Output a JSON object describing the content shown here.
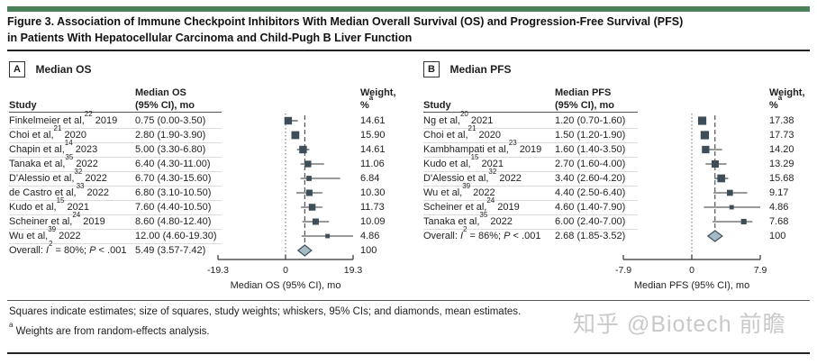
{
  "figure": {
    "title_line1": "Figure 3. Association of Immune Checkpoint Inhibitors With Median Overall Survival (OS) and Progression-Free Survival (PFS)",
    "title_line2": "in Patients With Hepatocellular Carcinoma and Child-Pugh B Liver Function",
    "footnote_main": "Squares indicate estimates; size of squares, study weights; whiskers, 95% CIs; and diamonds, mean estimates.",
    "footnote_a_sup": "a",
    "footnote_a_text": " Weights are from random-effects analysis.",
    "watermark": "知乎 @Biotech 前瞻"
  },
  "colors": {
    "accent_green": "#4a8159",
    "square": "#3d4e59",
    "diamond_fill": "#a5bcc8",
    "diamond_stroke": "#3d4e59",
    "axis": "#333333",
    "zero_line": "#666666",
    "separator": "#dcdcdc",
    "text": "#1f1f1f"
  },
  "chart_data": [
    {
      "type": "forest",
      "panel_letter": "A",
      "panel_title": "Median OS",
      "col_headers": {
        "study": "Study",
        "estimate_line1": "Median OS",
        "estimate_line2": "(95% CI), mo",
        "weight_line1": "Weight,",
        "weight_line2": "%",
        "weight_sup": "a"
      },
      "axis": {
        "min": -19.3,
        "max": 19.3,
        "ticks": [
          -19.3,
          0,
          19.3
        ],
        "tick_labels": [
          "-19.3",
          "0",
          "19.3"
        ],
        "label": "Median OS (95% CI), mo"
      },
      "rows": [
        {
          "label_parts": [
            {
              "t": "Finkelmeier et al,"
            },
            {
              "t": "22",
              "sup": true
            },
            {
              "t": " 2019"
            }
          ],
          "ci_text": "0.75 (0.00-3.50)",
          "est": 0.75,
          "lo": 0.0,
          "hi": 3.5,
          "weight": 14.61,
          "weight_text": "14.61"
        },
        {
          "label_parts": [
            {
              "t": "Choi et al,"
            },
            {
              "t": "21",
              "sup": true
            },
            {
              "t": " 2020"
            }
          ],
          "ci_text": "2.80 (1.90-3.90)",
          "est": 2.8,
          "lo": 1.9,
          "hi": 3.9,
          "weight": 15.9,
          "weight_text": "15.90"
        },
        {
          "label_parts": [
            {
              "t": "Chapin et al,"
            },
            {
              "t": "14",
              "sup": true
            },
            {
              "t": " 2023"
            }
          ],
          "ci_text": "5.00 (3.30-6.80)",
          "est": 5.0,
          "lo": 3.3,
          "hi": 6.8,
          "weight": 14.61,
          "weight_text": "14.61"
        },
        {
          "label_parts": [
            {
              "t": "Tanaka et al,"
            },
            {
              "t": "35",
              "sup": true
            },
            {
              "t": " 2022"
            }
          ],
          "ci_text": "6.40 (4.30-11.00)",
          "est": 6.4,
          "lo": 4.3,
          "hi": 11.0,
          "weight": 11.06,
          "weight_text": "11.06"
        },
        {
          "label_parts": [
            {
              "t": "D'Alessio et al,"
            },
            {
              "t": "32",
              "sup": true
            },
            {
              "t": " 2022"
            }
          ],
          "ci_text": "6.70 (4.30-15.60)",
          "est": 6.7,
          "lo": 4.3,
          "hi": 15.6,
          "weight": 6.84,
          "weight_text": "6.84"
        },
        {
          "label_parts": [
            {
              "t": "de Castro et al,"
            },
            {
              "t": "33",
              "sup": true
            },
            {
              "t": " 2022"
            }
          ],
          "ci_text": "6.80 (3.10-10.50)",
          "est": 6.8,
          "lo": 3.1,
          "hi": 10.5,
          "weight": 10.3,
          "weight_text": "10.30"
        },
        {
          "label_parts": [
            {
              "t": "Kudo et al,"
            },
            {
              "t": "15",
              "sup": true
            },
            {
              "t": " 2021"
            }
          ],
          "ci_text": "7.60 (4.40-10.50)",
          "est": 7.6,
          "lo": 4.4,
          "hi": 10.5,
          "weight": 11.73,
          "weight_text": "11.73"
        },
        {
          "label_parts": [
            {
              "t": "Scheiner et al,"
            },
            {
              "t": "24",
              "sup": true
            },
            {
              "t": " 2019"
            }
          ],
          "ci_text": "8.60 (4.80-12.40)",
          "est": 8.6,
          "lo": 4.8,
          "hi": 12.4,
          "weight": 10.09,
          "weight_text": "10.09"
        },
        {
          "label_parts": [
            {
              "t": "Wu et al,"
            },
            {
              "t": "39",
              "sup": true
            },
            {
              "t": " 2022"
            }
          ],
          "ci_text": "12.00 (4.60-19.30)",
          "est": 12.0,
          "lo": 4.6,
          "hi": 19.3,
          "weight": 4.86,
          "weight_text": "4.86"
        }
      ],
      "overall": {
        "label_parts": [
          {
            "t": "Overall: "
          },
          {
            "t": "I",
            "i": true
          },
          {
            "t": "2",
            "sup": true
          },
          {
            "t": " = 80%; "
          },
          {
            "t": "P",
            "i": true
          },
          {
            "t": " < .001"
          }
        ],
        "ci_text": "5.49 (3.57-7.42)",
        "est": 5.49,
        "lo": 3.57,
        "hi": 7.42,
        "weight_text": "100"
      }
    },
    {
      "type": "forest",
      "panel_letter": "B",
      "panel_title": "Median PFS",
      "col_headers": {
        "study": "Study",
        "estimate_line1": "Median PFS",
        "estimate_line2": "(95% CI), mo",
        "weight_line1": "Weight,",
        "weight_line2": "%",
        "weight_sup": "a"
      },
      "axis": {
        "min": -7.9,
        "max": 7.9,
        "ticks": [
          -7.9,
          0,
          7.9
        ],
        "tick_labels": [
          "-7.9",
          "0",
          "7.9"
        ],
        "label": "Median PFS (95% CI), mo"
      },
      "rows": [
        {
          "label_parts": [
            {
              "t": "Ng et al,"
            },
            {
              "t": "20",
              "sup": true
            },
            {
              "t": " 2021"
            }
          ],
          "ci_text": "1.20 (0.70-1.60)",
          "est": 1.2,
          "lo": 0.7,
          "hi": 1.6,
          "weight": 17.38,
          "weight_text": "17.38"
        },
        {
          "label_parts": [
            {
              "t": "Choi et al,"
            },
            {
              "t": "21",
              "sup": true
            },
            {
              "t": " 2020"
            }
          ],
          "ci_text": "1.50 (1.20-1.90)",
          "est": 1.5,
          "lo": 1.2,
          "hi": 1.9,
          "weight": 17.73,
          "weight_text": "17.73"
        },
        {
          "label_parts": [
            {
              "t": "Kambhampati et al,"
            },
            {
              "t": "23",
              "sup": true
            },
            {
              "t": " 2019"
            }
          ],
          "ci_text": "1.60 (1.40-3.50)",
          "est": 1.6,
          "lo": 1.4,
          "hi": 3.5,
          "weight": 14.2,
          "weight_text": "14.20"
        },
        {
          "label_parts": [
            {
              "t": "Kudo et al,"
            },
            {
              "t": "15",
              "sup": true
            },
            {
              "t": " 2021"
            }
          ],
          "ci_text": "2.70 (1.60-4.00)",
          "est": 2.7,
          "lo": 1.6,
          "hi": 4.0,
          "weight": 13.29,
          "weight_text": "13.29"
        },
        {
          "label_parts": [
            {
              "t": "D'Alessio et al,"
            },
            {
              "t": "32",
              "sup": true
            },
            {
              "t": " 2022"
            }
          ],
          "ci_text": "3.40 (2.60-4.20)",
          "est": 3.4,
          "lo": 2.6,
          "hi": 4.2,
          "weight": 15.68,
          "weight_text": "15.68"
        },
        {
          "label_parts": [
            {
              "t": "Wu et al,"
            },
            {
              "t": "39",
              "sup": true
            },
            {
              "t": " 2022"
            }
          ],
          "ci_text": "4.40 (2.50-6.40)",
          "est": 4.4,
          "lo": 2.5,
          "hi": 6.4,
          "weight": 9.17,
          "weight_text": "9.17"
        },
        {
          "label_parts": [
            {
              "t": "Scheiner et al,"
            },
            {
              "t": "24",
              "sup": true
            },
            {
              "t": " 2019"
            }
          ],
          "ci_text": "4.60 (1.40-7.90)",
          "est": 4.6,
          "lo": 1.4,
          "hi": 7.9,
          "weight": 4.86,
          "weight_text": "4.86"
        },
        {
          "label_parts": [
            {
              "t": "Tanaka et al,"
            },
            {
              "t": "35",
              "sup": true
            },
            {
              "t": " 2022"
            }
          ],
          "ci_text": "6.00 (2.40-7.00)",
          "est": 6.0,
          "lo": 2.4,
          "hi": 7.0,
          "weight": 7.68,
          "weight_text": "7.68"
        }
      ],
      "overall": {
        "label_parts": [
          {
            "t": "Overall: "
          },
          {
            "t": "I",
            "i": true
          },
          {
            "t": "2",
            "sup": true
          },
          {
            "t": " = 86%; "
          },
          {
            "t": "P",
            "i": true
          },
          {
            "t": " < .001"
          }
        ],
        "ci_text": "2.68 (1.85-3.52)",
        "est": 2.68,
        "lo": 1.85,
        "hi": 3.52,
        "weight_text": "100"
      }
    }
  ]
}
